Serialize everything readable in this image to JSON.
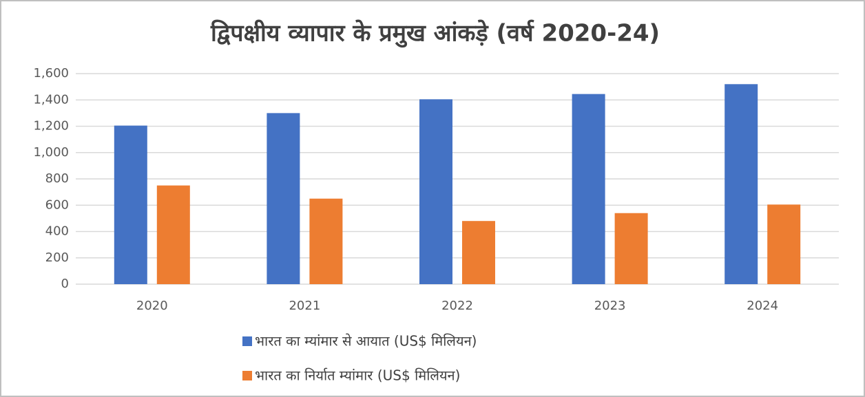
{
  "chart_data": {
    "type": "bar",
    "title": "द्विपक्षीय व्यापार के प्रमुख आंकड़े (वर्ष 2020-24)",
    "categories": [
      "2020",
      "2021",
      "2022",
      "2023",
      "2024"
    ],
    "series": [
      {
        "name": "भारत का म्यांमार से आयात (US$ मिलियन)",
        "color": "#4472c4",
        "values": [
          1205,
          1300,
          1405,
          1445,
          1520
        ]
      },
      {
        "name": "भारत का निर्यात म्यांमार (US$ मिलियन)",
        "color": "#ed7d31",
        "values": [
          750,
          650,
          480,
          540,
          605
        ]
      }
    ],
    "ylim": [
      0,
      1600
    ],
    "yticks": [
      0,
      200,
      400,
      600,
      800,
      {
        "value": 1000,
        "label": "1,000"
      },
      {
        "value": 1200,
        "label": "1,200"
      },
      {
        "value": 1400,
        "label": "1,400"
      },
      {
        "value": 1600,
        "label": "1,600"
      }
    ],
    "grid": true,
    "legend": "bottom"
  }
}
